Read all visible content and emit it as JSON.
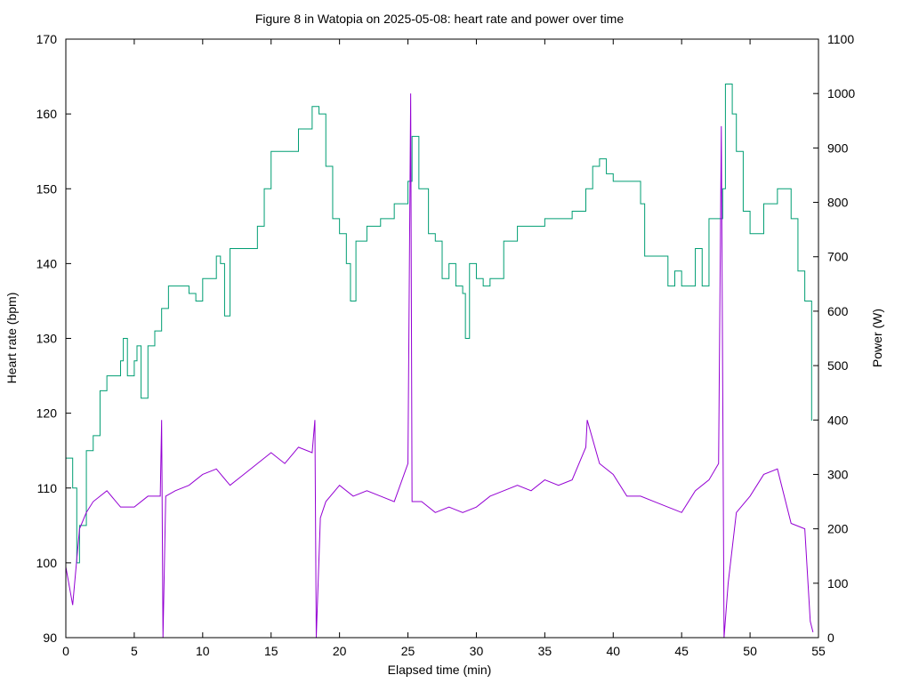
{
  "chart_data": {
    "type": "line",
    "title": "Figure 8 in Watopia on 2025-05-08: heart rate and power over time",
    "xlabel": "Elapsed time (min)",
    "ylabel": "Heart rate (bpm)",
    "y2label": "Power (W)",
    "xlim": [
      0,
      55
    ],
    "ylim": [
      90,
      170
    ],
    "y2lim": [
      0,
      1100
    ],
    "xticks": [
      0,
      5,
      10,
      15,
      20,
      25,
      30,
      35,
      40,
      45,
      50,
      55
    ],
    "yticks": [
      90,
      100,
      110,
      120,
      130,
      140,
      150,
      160,
      170
    ],
    "y2ticks": [
      0,
      100,
      200,
      300,
      400,
      500,
      600,
      700,
      800,
      900,
      1000,
      1100
    ],
    "grid": false,
    "legend": "none",
    "series": [
      {
        "axis": "left",
        "color": "#009e73",
        "x": [
          0,
          0.5,
          0.8,
          1.0,
          1.5,
          2,
          2.5,
          3,
          3.5,
          4,
          4.2,
          4.5,
          5,
          5.2,
          5.5,
          6,
          6.5,
          7,
          7.5,
          8,
          9,
          9.5,
          10,
          10.5,
          11,
          11.3,
          11.6,
          12,
          13,
          14,
          14.5,
          15,
          16,
          17,
          18,
          18.5,
          19,
          19.5,
          20,
          20.5,
          20.8,
          21.2,
          22,
          23,
          24,
          25,
          25.3,
          25.8,
          26.5,
          27,
          27.5,
          28,
          28.5,
          29,
          29.2,
          29.5,
          30,
          30.5,
          31,
          32,
          33,
          34,
          35,
          36,
          37,
          38,
          38.5,
          39,
          39.5,
          40,
          41,
          42,
          42.3,
          43,
          44,
          44.5,
          45,
          46,
          46.5,
          47,
          48,
          48.2,
          48.7,
          49,
          49.5,
          50,
          51,
          52,
          52.5,
          53,
          53.5,
          54,
          54.5
        ],
        "y": [
          114,
          110,
          100,
          105,
          115,
          117,
          123,
          125,
          125,
          127,
          130,
          125,
          127,
          129,
          122,
          129,
          131,
          134,
          137,
          137,
          136,
          135,
          138,
          138,
          141,
          140,
          133,
          142,
          142,
          145,
          150,
          155,
          155,
          158,
          161,
          160,
          153,
          146,
          144,
          140,
          135,
          143,
          145,
          146,
          148,
          151,
          157,
          150,
          144,
          143,
          138,
          140,
          137,
          136,
          130,
          140,
          138,
          137,
          138,
          143,
          145,
          145,
          146,
          146,
          147,
          150,
          153,
          154,
          152,
          151,
          151,
          148,
          141,
          141,
          137,
          139,
          137,
          142,
          137,
          146,
          150,
          164,
          160,
          155,
          147,
          144,
          148,
          150,
          150,
          146,
          139,
          135,
          119
        ]
      },
      {
        "axis": "right",
        "color": "#9400d3",
        "x": [
          0,
          0.5,
          1,
          1.5,
          2,
          3,
          4,
          5,
          6,
          6.9,
          7.0,
          7.1,
          7.3,
          8,
          9,
          10,
          11,
          12,
          13,
          14,
          15,
          16,
          17,
          18,
          18.2,
          18.3,
          18.6,
          19,
          20,
          21,
          22,
          23,
          24,
          25,
          25.2,
          25.3,
          26,
          27,
          28,
          29,
          30,
          31,
          32,
          33,
          34,
          35,
          36,
          37,
          38,
          38.1,
          39,
          40,
          41,
          42,
          43,
          44,
          45,
          46,
          47,
          47.7,
          47.9,
          48.1,
          48.4,
          49,
          50,
          51,
          52,
          53,
          54,
          54.4,
          54.6
        ],
        "y": [
          130,
          60,
          200,
          230,
          250,
          270,
          240,
          240,
          260,
          260,
          400,
          0,
          260,
          270,
          280,
          300,
          310,
          280,
          300,
          320,
          340,
          320,
          350,
          340,
          400,
          0,
          220,
          250,
          280,
          260,
          270,
          260,
          250,
          320,
          1000,
          250,
          250,
          230,
          240,
          230,
          240,
          260,
          270,
          280,
          270,
          290,
          280,
          290,
          350,
          400,
          320,
          300,
          260,
          260,
          250,
          240,
          230,
          270,
          290,
          320,
          940,
          0,
          100,
          230,
          260,
          300,
          310,
          210,
          200,
          30,
          10
        ]
      }
    ]
  }
}
